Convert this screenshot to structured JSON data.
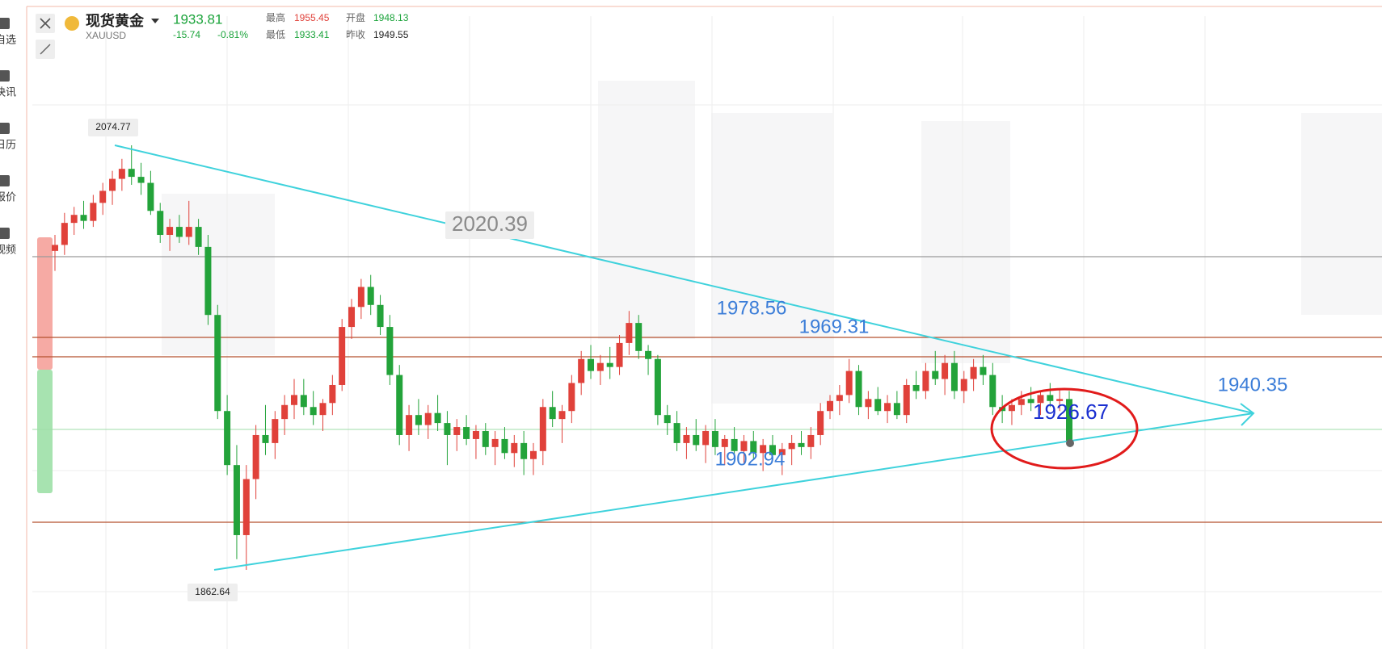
{
  "header": {
    "symbol": "现货黄金",
    "code": "XAUUSD",
    "price": 1933.81,
    "change": -15.74,
    "change_pct": "-0.81%",
    "stats": [
      {
        "label": "最高",
        "value": 1955.45
      },
      {
        "label": "开盘",
        "value": 1948.13
      },
      {
        "label": "最低",
        "value": 1933.41
      },
      {
        "label": "昨收",
        "value": 1949.55
      }
    ]
  },
  "sidebar": [
    "自选",
    "快讯",
    "日历",
    "报价",
    "视频"
  ],
  "chart": {
    "annotations": [
      2074.77,
      1862.64,
      2020.39,
      1978.56,
      1969.31,
      1902.94,
      1940.35,
      1926.67
    ],
    "candles": [
      [
        2022,
        2030,
        2012,
        2025
      ],
      [
        2025,
        2041,
        2020,
        2036
      ],
      [
        2036,
        2044,
        2030,
        2040
      ],
      [
        2040,
        2047,
        2033,
        2037
      ],
      [
        2037,
        2050,
        2034,
        2046
      ],
      [
        2046,
        2056,
        2040,
        2052
      ],
      [
        2052,
        2062,
        2045,
        2058
      ],
      [
        2058,
        2068,
        2052,
        2063
      ],
      [
        2063,
        2074.77,
        2055,
        2059
      ],
      [
        2059,
        2066,
        2050,
        2056
      ],
      [
        2056,
        2062,
        2040,
        2042
      ],
      [
        2042,
        2046,
        2026,
        2030
      ],
      [
        2030,
        2038,
        2022,
        2034
      ],
      [
        2034,
        2040,
        2026,
        2029
      ],
      [
        2029,
        2047,
        2025,
        2034
      ],
      [
        2034,
        2038,
        2020,
        2024
      ],
      [
        2024,
        2030,
        1985,
        1990
      ],
      [
        1990,
        1995,
        1938,
        1942
      ],
      [
        1942,
        1950,
        1910,
        1915
      ],
      [
        1915,
        1925,
        1868,
        1880
      ],
      [
        1880,
        1915,
        1862.64,
        1908
      ],
      [
        1908,
        1935,
        1898,
        1930
      ],
      [
        1930,
        1945,
        1920,
        1926
      ],
      [
        1926,
        1942,
        1918,
        1938
      ],
      [
        1938,
        1950,
        1930,
        1945
      ],
      [
        1945,
        1958,
        1938,
        1950
      ],
      [
        1950,
        1958,
        1940,
        1944
      ],
      [
        1944,
        1952,
        1935,
        1940
      ],
      [
        1940,
        1948,
        1932,
        1946
      ],
      [
        1946,
        1960,
        1940,
        1955
      ],
      [
        1955,
        1988,
        1952,
        1984
      ],
      [
        1984,
        1998,
        1978,
        1994
      ],
      [
        1994,
        2008,
        1988,
        2004
      ],
      [
        2004,
        2010,
        1990,
        1995
      ],
      [
        1995,
        2000,
        1980,
        1984
      ],
      [
        1984,
        1990,
        1955,
        1960
      ],
      [
        1960,
        1965,
        1925,
        1930
      ],
      [
        1930,
        1945,
        1922,
        1940
      ],
      [
        1940,
        1948,
        1930,
        1935
      ],
      [
        1935,
        1945,
        1928,
        1941
      ],
      [
        1941,
        1950,
        1932,
        1936
      ],
      [
        1936,
        1942,
        1915,
        1930
      ],
      [
        1930,
        1938,
        1922,
        1934
      ],
      [
        1934,
        1940,
        1925,
        1928
      ],
      [
        1928,
        1935,
        1918,
        1932
      ],
      [
        1932,
        1936,
        1920,
        1924
      ],
      [
        1924,
        1932,
        1915,
        1928
      ],
      [
        1928,
        1934,
        1918,
        1921
      ],
      [
        1921,
        1930,
        1914,
        1926
      ],
      [
        1926,
        1932,
        1910,
        1918
      ],
      [
        1918,
        1926,
        1910,
        1922
      ],
      [
        1922,
        1948,
        1915,
        1944
      ],
      [
        1944,
        1952,
        1934,
        1938
      ],
      [
        1938,
        1945,
        1926,
        1942
      ],
      [
        1942,
        1960,
        1936,
        1956
      ],
      [
        1956,
        1972,
        1950,
        1968
      ],
      [
        1968,
        1975,
        1958,
        1962
      ],
      [
        1962,
        1970,
        1955,
        1966
      ],
      [
        1966,
        1974,
        1958,
        1964
      ],
      [
        1964,
        1980,
        1960,
        1976
      ],
      [
        1976,
        1992,
        1970,
        1986
      ],
      [
        1986,
        1990,
        1968,
        1972
      ],
      [
        1972,
        1975,
        1960,
        1968
      ],
      [
        1968,
        1970,
        1935,
        1940
      ],
      [
        1940,
        1945,
        1930,
        1936
      ],
      [
        1936,
        1942,
        1922,
        1926
      ],
      [
        1926,
        1934,
        1918,
        1930
      ],
      [
        1930,
        1938,
        1922,
        1925
      ],
      [
        1925,
        1935,
        1916,
        1932
      ],
      [
        1932,
        1938,
        1920,
        1924
      ],
      [
        1924,
        1930,
        1915,
        1928
      ],
      [
        1928,
        1934,
        1920,
        1922
      ],
      [
        1922,
        1930,
        1916,
        1927
      ],
      [
        1927,
        1932,
        1918,
        1921
      ],
      [
        1921,
        1928,
        1912,
        1925
      ],
      [
        1925,
        1930,
        1918,
        1920
      ],
      [
        1920,
        1926,
        1910,
        1923
      ],
      [
        1923,
        1930,
        1915,
        1926
      ],
      [
        1926,
        1932,
        1920,
        1924
      ],
      [
        1924,
        1934,
        1918,
        1930
      ],
      [
        1930,
        1946,
        1925,
        1942
      ],
      [
        1942,
        1950,
        1938,
        1947
      ],
      [
        1947,
        1955,
        1940,
        1950
      ],
      [
        1950,
        1968,
        1946,
        1962
      ],
      [
        1962,
        1965,
        1940,
        1944
      ],
      [
        1944,
        1952,
        1938,
        1948
      ],
      [
        1948,
        1954,
        1940,
        1942
      ],
      [
        1942,
        1950,
        1936,
        1946
      ],
      [
        1946,
        1952,
        1938,
        1940
      ],
      [
        1940,
        1958,
        1936,
        1955
      ],
      [
        1955,
        1962,
        1948,
        1952
      ],
      [
        1952,
        1966,
        1948,
        1962
      ],
      [
        1962,
        1972,
        1955,
        1958
      ],
      [
        1958,
        1970,
        1950,
        1966
      ],
      [
        1966,
        1972,
        1948,
        1952
      ],
      [
        1952,
        1962,
        1946,
        1958
      ],
      [
        1958,
        1968,
        1952,
        1964
      ],
      [
        1964,
        1970,
        1955,
        1960
      ],
      [
        1960,
        1966,
        1940,
        1944
      ],
      [
        1944,
        1950,
        1936,
        1942
      ],
      [
        1942,
        1948,
        1935,
        1945
      ],
      [
        1945,
        1952,
        1940,
        1948
      ],
      [
        1948,
        1954,
        1942,
        1946
      ],
      [
        1946,
        1952,
        1940,
        1950
      ],
      [
        1950,
        1956,
        1944,
        1947
      ],
      [
        1947,
        1953,
        1942,
        1948
      ],
      [
        1948,
        1952,
        1926.67,
        1927
      ]
    ]
  }
}
